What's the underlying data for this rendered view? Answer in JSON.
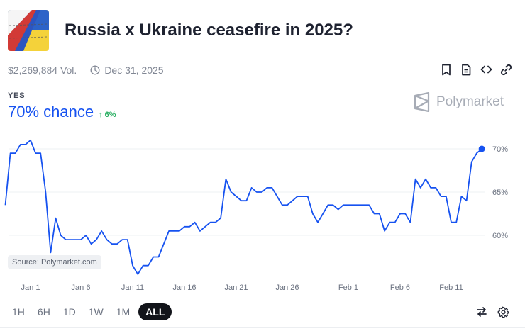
{
  "market": {
    "title": "Russia x Ukraine ceasefire in 2025?",
    "volume": "$2,269,884 Vol.",
    "end_date": "Dec 31, 2025"
  },
  "actions": [
    "bookmark-icon",
    "document-icon",
    "embed-code-icon",
    "link-icon"
  ],
  "outcome": {
    "label": "YES",
    "chance": "70% chance",
    "delta": "6%"
  },
  "brand": {
    "name": "Polymarket"
  },
  "source": "Source: Polymarket.com",
  "time_ranges": [
    "1H",
    "6H",
    "1D",
    "1W",
    "1M",
    "ALL"
  ],
  "active_range": "ALL",
  "colors": {
    "line": "#1652f0",
    "up": "#27ae60",
    "text": "#1e2230",
    "muted": "#818794"
  },
  "chart_data": {
    "type": "line",
    "x_ticks": [
      "Jan 1",
      "Jan 6",
      "Jan 11",
      "Jan 16",
      "Jan 21",
      "Jan 26",
      "Feb 1",
      "Feb 6",
      "Feb 11"
    ],
    "y_ticks": [
      "60%",
      "65%",
      "70%"
    ],
    "y_tick_values": [
      60,
      65,
      70
    ],
    "ylim": [
      57,
      72
    ],
    "grid": true,
    "series": [
      {
        "values": [
          [
            -2.5,
            63.5
          ],
          [
            -2.0,
            69.5
          ],
          [
            -1.5,
            69.5
          ],
          [
            -1.0,
            70.5
          ],
          [
            -0.5,
            70.5
          ],
          [
            0.0,
            71.0
          ],
          [
            0.5,
            69.5
          ],
          [
            1.0,
            69.5
          ],
          [
            1.5,
            65.0
          ],
          [
            2.0,
            58.0
          ],
          [
            2.5,
            62.0
          ],
          [
            3.0,
            60.0
          ],
          [
            3.5,
            59.5
          ],
          [
            4.0,
            59.5
          ],
          [
            4.5,
            59.5
          ],
          [
            5.0,
            59.5
          ],
          [
            5.5,
            60.0
          ],
          [
            6.0,
            59.0
          ],
          [
            6.5,
            59.5
          ],
          [
            7.0,
            60.5
          ],
          [
            7.5,
            59.5
          ],
          [
            8.0,
            59.0
          ],
          [
            8.5,
            59.0
          ],
          [
            9.0,
            59.5
          ],
          [
            9.5,
            59.5
          ],
          [
            10.0,
            56.5
          ],
          [
            10.5,
            55.5
          ],
          [
            11.0,
            56.5
          ],
          [
            11.5,
            56.5
          ],
          [
            12.0,
            57.5
          ],
          [
            12.5,
            57.5
          ],
          [
            13.0,
            59.0
          ],
          [
            13.5,
            60.5
          ],
          [
            14.0,
            60.5
          ],
          [
            14.5,
            60.5
          ],
          [
            15.0,
            61.0
          ],
          [
            15.5,
            61.0
          ],
          [
            16.0,
            61.5
          ],
          [
            16.5,
            60.5
          ],
          [
            17.0,
            61.0
          ],
          [
            17.5,
            61.5
          ],
          [
            18.0,
            61.5
          ],
          [
            18.5,
            62.0
          ],
          [
            19.0,
            66.5
          ],
          [
            19.5,
            65.0
          ],
          [
            20.0,
            64.5
          ],
          [
            20.5,
            64.0
          ],
          [
            21.0,
            64.0
          ],
          [
            21.5,
            65.5
          ],
          [
            22.0,
            65.0
          ],
          [
            22.5,
            65.0
          ],
          [
            23.0,
            65.5
          ],
          [
            23.5,
            65.5
          ],
          [
            24.0,
            64.5
          ],
          [
            24.5,
            63.5
          ],
          [
            25.0,
            63.5
          ],
          [
            25.5,
            64.0
          ],
          [
            26.0,
            64.5
          ],
          [
            26.5,
            64.5
          ],
          [
            27.0,
            64.5
          ],
          [
            27.5,
            62.5
          ],
          [
            28.0,
            61.5
          ],
          [
            28.5,
            62.5
          ],
          [
            29.0,
            63.5
          ],
          [
            29.5,
            63.5
          ],
          [
            30.0,
            63.0
          ],
          [
            30.5,
            63.5
          ],
          [
            31.0,
            63.5
          ],
          [
            31.5,
            63.5
          ],
          [
            32.0,
            63.5
          ],
          [
            32.5,
            63.5
          ],
          [
            33.0,
            63.5
          ],
          [
            33.5,
            62.5
          ],
          [
            34.0,
            62.5
          ],
          [
            34.5,
            60.5
          ],
          [
            35.0,
            61.5
          ],
          [
            35.5,
            61.5
          ],
          [
            36.0,
            62.5
          ],
          [
            36.5,
            62.5
          ],
          [
            37.0,
            61.5
          ],
          [
            37.5,
            66.5
          ],
          [
            38.0,
            65.5
          ],
          [
            38.5,
            66.5
          ],
          [
            39.0,
            65.5
          ],
          [
            39.5,
            65.5
          ],
          [
            40.0,
            64.5
          ],
          [
            40.5,
            64.5
          ],
          [
            41.0,
            61.5
          ],
          [
            41.5,
            61.5
          ],
          [
            42.0,
            64.5
          ],
          [
            42.5,
            64.0
          ],
          [
            43.0,
            68.5
          ],
          [
            43.5,
            69.5
          ],
          [
            44.0,
            70.0
          ]
        ]
      }
    ]
  }
}
